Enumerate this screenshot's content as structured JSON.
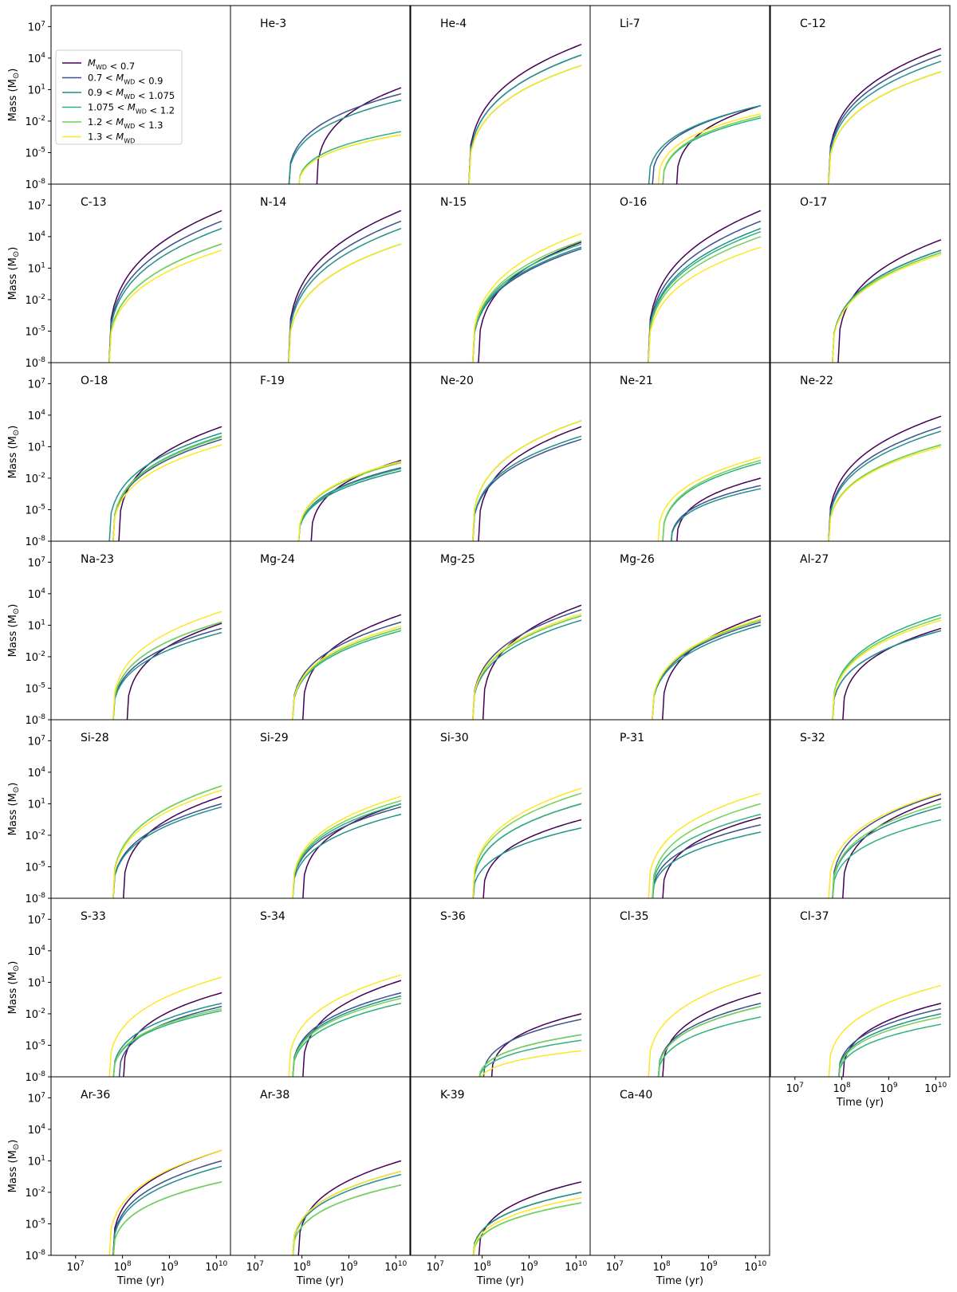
{
  "figure": {
    "ylabel": "Mass (M",
    "ylabel_symbol": "⊙",
    "ylabel_close": ")",
    "xlabel": "Time (yr)"
  },
  "legend": {
    "placement": "upper-left panel",
    "entries": [
      {
        "label": "M_WD < 0.7",
        "color": "#440154"
      },
      {
        "label": "0.7 < M_WD < 0.9",
        "color": "#3b528b"
      },
      {
        "label": "0.9 < M_WD < 1.075",
        "color": "#21918c"
      },
      {
        "label": "1.075 < M_WD < 1.2",
        "color": "#2db27d"
      },
      {
        "label": "1.2 < M_WD < 1.3",
        "color": "#73d055"
      },
      {
        "label": "1.3 < M_WD",
        "color": "#fde725"
      }
    ]
  },
  "chart_data": {
    "type": "line",
    "xscale": "log",
    "yscale": "log",
    "xlim": [
      3000000,
      20000000000
    ],
    "ylim": [
      1e-08,
      1000000000.0
    ],
    "x_ticks": [
      {
        "value": 10000000.0,
        "label": "10^7"
      },
      {
        "value": 100000000.0,
        "label": "10^8"
      },
      {
        "value": 1000000000.0,
        "label": "10^9"
      },
      {
        "value": 10000000000.0,
        "label": "10^10"
      }
    ],
    "y_ticks": [
      {
        "value": 1e-08,
        "label": "10^-8"
      },
      {
        "value": 1e-05,
        "label": "10^-5"
      },
      {
        "value": 0.01,
        "label": "10^-2"
      },
      {
        "value": 10,
        "label": "10^1"
      },
      {
        "value": 10000,
        "label": "10^4"
      },
      {
        "value": 10000000,
        "label": "10^7"
      }
    ],
    "series_names": [
      "M_WD < 0.7",
      "0.7 < M_WD < 0.9",
      "0.9 < M_WD < 1.075",
      "1.075 < M_WD < 1.2",
      "1.2 < M_WD < 1.3",
      "1.3 < M_WD"
    ],
    "x": [
      100000000.0,
      300000000.0,
      1000000000.0,
      3000000000.0,
      13000000000.0
    ],
    "panels": [
      {
        "label": "",
        "legend": true
      },
      {
        "label": "He-3",
        "onset": [
          200000000.0,
          50000000.0,
          50000000.0,
          80000000.0,
          80000000.0,
          80000000.0
        ],
        "final": [
          15,
          4,
          1,
          0.001,
          0.0005,
          0.0005
        ]
      },
      {
        "label": "He-4",
        "onset": [
          50000000.0,
          50000000.0,
          50000000.0,
          50000000.0,
          50000000.0,
          50000000.0
        ],
        "final": [
          200000,
          20000,
          20000,
          2000,
          2000,
          2000
        ]
      },
      {
        "label": "Li-7",
        "onset": [
          200000000.0,
          60000000.0,
          50000000.0,
          100000000.0,
          100000000.0,
          80000000.0
        ],
        "final": [
          0.3,
          0.3,
          0.3,
          0.02,
          0.03,
          0.05
        ]
      },
      {
        "label": "C-12",
        "onset": [
          50000000.0,
          50000000.0,
          50000000.0,
          50000000.0,
          50000000.0,
          50000000.0
        ],
        "final": [
          80000,
          20000,
          5000,
          500,
          500,
          500
        ]
      },
      {
        "label": "C-13",
        "onset": [
          50000000.0,
          50000000.0,
          50000000.0,
          50000000.0,
          50000000.0,
          50000000.0
        ],
        "final": [
          3000000,
          300000,
          60000,
          2000,
          2000,
          500
        ]
      },
      {
        "label": "N-14",
        "onset": [
          50000000.0,
          50000000.0,
          50000000.0,
          50000000.0,
          50000000.0,
          50000000.0
        ],
        "final": [
          3000000,
          300000,
          60000,
          2000,
          2000,
          2000
        ]
      },
      {
        "label": "N-15",
        "onset": [
          80000000.0,
          60000000.0,
          60000000.0,
          60000000.0,
          60000000.0,
          60000000.0
        ],
        "final": [
          3000,
          700,
          1000,
          2000,
          4000,
          20000
        ]
      },
      {
        "label": "O-16",
        "onset": [
          50000000.0,
          50000000.0,
          50000000.0,
          50000000.0,
          50000000.0,
          50000000.0
        ],
        "final": [
          3000000,
          300000,
          60000,
          30000,
          10000,
          1000
        ]
      },
      {
        "label": "O-17",
        "onset": [
          80000000.0,
          60000000.0,
          60000000.0,
          60000000.0,
          60000000.0,
          60000000.0
        ],
        "final": [
          5000,
          500,
          500,
          300,
          300,
          200
        ]
      },
      {
        "label": "O-18",
        "onset": [
          80000000.0,
          60000000.0,
          50000000.0,
          60000000.0,
          60000000.0,
          60000000.0
        ],
        "final": [
          800,
          50,
          200,
          100,
          80,
          15
        ]
      },
      {
        "label": "F-19",
        "onset": [
          150000000.0,
          80000000.0,
          80000000.0,
          80000000.0,
          80000000.0,
          80000000.0
        ],
        "final": [
          0.5,
          0.1,
          0.05,
          0.08,
          0.3,
          0.4
        ]
      },
      {
        "label": "Ne-20",
        "onset": [
          80000000.0,
          60000000.0,
          60000000.0,
          60000000.0,
          60000000.0,
          60000000.0
        ],
        "final": [
          800,
          50,
          100,
          3000,
          3000,
          3000
        ]
      },
      {
        "label": "Ne-21",
        "onset": [
          200000000.0,
          150000000.0,
          150000000.0,
          100000000.0,
          100000000.0,
          80000000.0
        ],
        "final": [
          0.01,
          0.002,
          0.001,
          0.3,
          0.5,
          1
        ]
      },
      {
        "label": "Ne-22",
        "onset": [
          50000000.0,
          50000000.0,
          50000000.0,
          50000000.0,
          50000000.0,
          50000000.0
        ],
        "final": [
          8000,
          800,
          300,
          15,
          15,
          10
        ]
      },
      {
        "label": "Na-23",
        "onset": [
          120000000.0,
          60000000.0,
          60000000.0,
          60000000.0,
          60000000.0,
          60000000.0
        ],
        "final": [
          15,
          5,
          2,
          20,
          20,
          200
        ]
      },
      {
        "label": "Mg-24",
        "onset": [
          100000000.0,
          60000000.0,
          60000000.0,
          60000000.0,
          60000000.0,
          60000000.0
        ],
        "final": [
          100,
          20,
          5,
          3,
          5,
          8
        ]
      },
      {
        "label": "Mg-25",
        "onset": [
          100000000.0,
          60000000.0,
          60000000.0,
          60000000.0,
          60000000.0,
          60000000.0
        ],
        "final": [
          800,
          300,
          30,
          80,
          80,
          120
        ]
      },
      {
        "label": "Mg-26",
        "onset": [
          100000000.0,
          60000000.0,
          60000000.0,
          60000000.0,
          60000000.0,
          60000000.0
        ],
        "final": [
          80,
          20,
          10,
          30,
          30,
          40
        ]
      },
      {
        "label": "Al-27",
        "onset": [
          100000000.0,
          60000000.0,
          60000000.0,
          60000000.0,
          60000000.0,
          60000000.0
        ],
        "final": [
          5,
          3,
          3,
          100,
          50,
          30
        ]
      },
      {
        "label": "Si-28",
        "onset": [
          100000000.0,
          60000000.0,
          60000000.0,
          60000000.0,
          60000000.0,
          60000000.0
        ],
        "final": [
          50,
          10,
          5,
          500,
          500,
          200
        ]
      },
      {
        "label": "Si-29",
        "onset": [
          100000000.0,
          60000000.0,
          60000000.0,
          60000000.0,
          60000000.0,
          60000000.0
        ],
        "final": [
          10,
          5,
          1,
          10,
          20,
          50
        ]
      },
      {
        "label": "Si-30",
        "onset": [
          100000000.0,
          60000000.0,
          60000000.0,
          60000000.0,
          60000000.0,
          60000000.0
        ],
        "final": [
          0.3,
          10,
          0.05,
          10,
          100,
          300
        ]
      },
      {
        "label": "P-31",
        "onset": [
          100000000.0,
          60000000.0,
          60000000.0,
          60000000.0,
          60000000.0,
          50000000.0
        ],
        "final": [
          0.5,
          0.1,
          0.02,
          1,
          10,
          100
        ]
      },
      {
        "label": "S-32",
        "onset": [
          100000000.0,
          60000000.0,
          60000000.0,
          60000000.0,
          60000000.0,
          50000000.0
        ],
        "final": [
          30,
          80,
          5,
          0.3,
          10,
          100
        ]
      },
      {
        "label": "S-33",
        "onset": [
          100000000.0,
          80000000.0,
          60000000.0,
          60000000.0,
          60000000.0,
          50000000.0
        ],
        "final": [
          1,
          0.05,
          0.1,
          0.02,
          0.03,
          30
        ]
      },
      {
        "label": "S-34",
        "onset": [
          100000000.0,
          60000000.0,
          60000000.0,
          60000000.0,
          60000000.0,
          50000000.0
        ],
        "final": [
          15,
          1,
          0.5,
          0.1,
          0.3,
          50
        ]
      },
      {
        "label": "S-36",
        "onset": [
          150000000.0,
          100000000.0,
          80000000.0,
          80000000.0,
          80000000.0,
          80000000.0
        ],
        "final": [
          0.01,
          0.003,
          0.0001,
          3e-05,
          0.0001,
          3e-06
        ]
      },
      {
        "label": "Cl-35",
        "onset": [
          100000000.0,
          80000000.0,
          80000000.0,
          80000000.0,
          80000000.0,
          50000000.0
        ],
        "final": [
          1,
          0.1,
          0.05,
          0.005,
          0.05,
          50
        ]
      },
      {
        "label": "Cl-37",
        "onset": [
          100000000.0,
          80000000.0,
          80000000.0,
          80000000.0,
          80000000.0,
          50000000.0
        ],
        "final": [
          0.1,
          0.03,
          0.01,
          0.001,
          0.005,
          5
        ]
      },
      {
        "label": "Ar-36",
        "onset": [
          60000000.0,
          60000000.0,
          60000000.0,
          60000000.0,
          60000000.0,
          50000000.0
        ],
        "final": [
          100,
          10,
          3,
          0.1,
          0.1,
          100
        ]
      },
      {
        "label": "Ar-38",
        "onset": [
          80000000.0,
          60000000.0,
          60000000.0,
          60000000.0,
          60000000.0,
          60000000.0
        ],
        "final": [
          10,
          1,
          0.5,
          0.05,
          0.05,
          1
        ]
      },
      {
        "label": "K-39",
        "onset": [
          80000000.0,
          60000000.0,
          60000000.0,
          60000000.0,
          60000000.0,
          60000000.0
        ],
        "final": [
          0.1,
          0.01,
          0.01,
          0.001,
          0.001,
          0.003
        ]
      },
      {
        "label": "Ca-40",
        "onset": [],
        "final": []
      }
    ]
  }
}
